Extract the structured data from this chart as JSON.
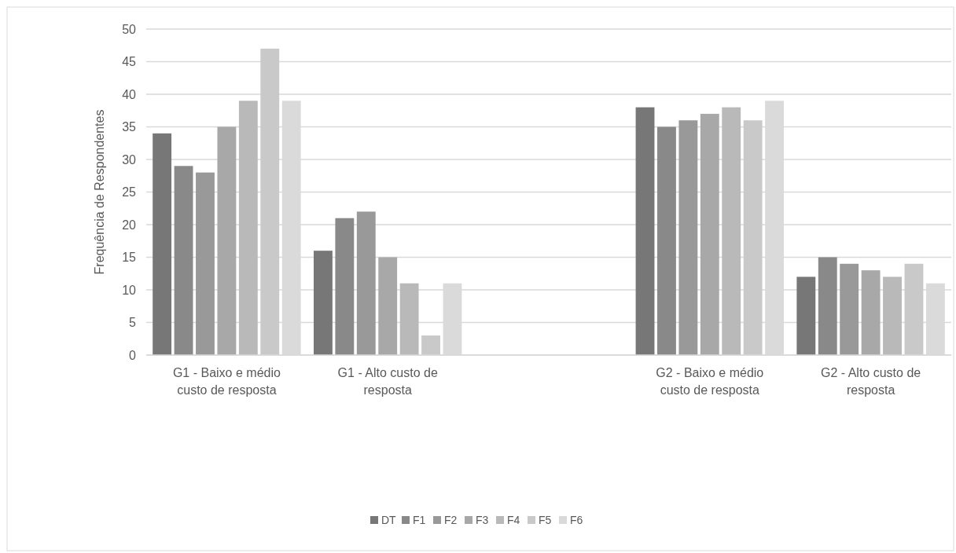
{
  "chart_data": {
    "type": "bar",
    "ylabel": "Frequência de Respondentes",
    "categories": [
      "G1 - Baixo e médio custo de resposta",
      "G1 - Alto custo de resposta",
      null,
      "G2 - Baixo e médio custo de resposta",
      "G2 - Alto custo de resposta"
    ],
    "series": [
      {
        "name": "DT",
        "color": "#777777",
        "values": [
          34,
          16,
          null,
          38,
          12
        ]
      },
      {
        "name": "F1",
        "color": "#898989",
        "values": [
          29,
          21,
          null,
          35,
          15
        ]
      },
      {
        "name": "F2",
        "color": "#999999",
        "values": [
          28,
          22,
          null,
          36,
          14
        ]
      },
      {
        "name": "F3",
        "color": "#a8a8a8",
        "values": [
          35,
          15,
          null,
          37,
          13
        ]
      },
      {
        "name": "F4",
        "color": "#b9b9b9",
        "values": [
          39,
          11,
          null,
          38,
          12
        ]
      },
      {
        "name": "F5",
        "color": "#c9c9c9",
        "values": [
          47,
          3,
          null,
          36,
          14
        ]
      },
      {
        "name": "F6",
        "color": "#dadada",
        "values": [
          39,
          11,
          null,
          39,
          11
        ]
      }
    ],
    "ylim": [
      0,
      50
    ],
    "yticks": [
      0,
      5,
      10,
      15,
      20,
      25,
      30,
      35,
      40,
      45,
      50
    ],
    "grid": "y",
    "legend": "bottom"
  }
}
